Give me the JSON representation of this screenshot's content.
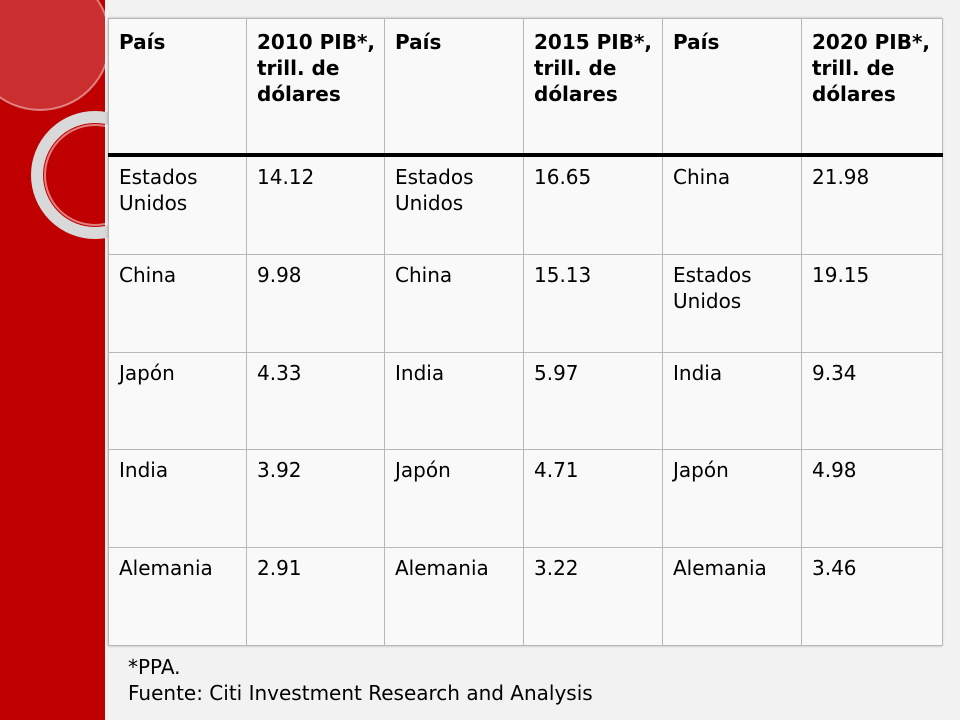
{
  "table": {
    "headers": [
      "País",
      "2010 PIB*, trill. de dólares",
      "País",
      "2015 PIB*, trill. de dólares",
      "País",
      "2020 PIB*, trill. de dólares"
    ],
    "rows": [
      [
        "Estados Unidos",
        "14.12",
        "Estados Unidos",
        "16.65",
        "China",
        "21.98"
      ],
      [
        "China",
        "9.98",
        "China",
        "15.13",
        "Estados Unidos",
        "19.15"
      ],
      [
        "Japón",
        "4.33",
        "India",
        "5.97",
        "India",
        "9.34"
      ],
      [
        "India",
        "3.92",
        "Japón",
        "4.71",
        "Japón",
        "4.98"
      ],
      [
        "Alemania",
        "2.91",
        "Alemania",
        "3.22",
        "Alemania",
        "3.46"
      ]
    ]
  },
  "footnote": {
    "ppa": "*PPA.",
    "source": "Fuente: Citi Investment Research and Analysis"
  },
  "colors": {
    "band": "#c00000",
    "background": "#f2f2f2"
  }
}
